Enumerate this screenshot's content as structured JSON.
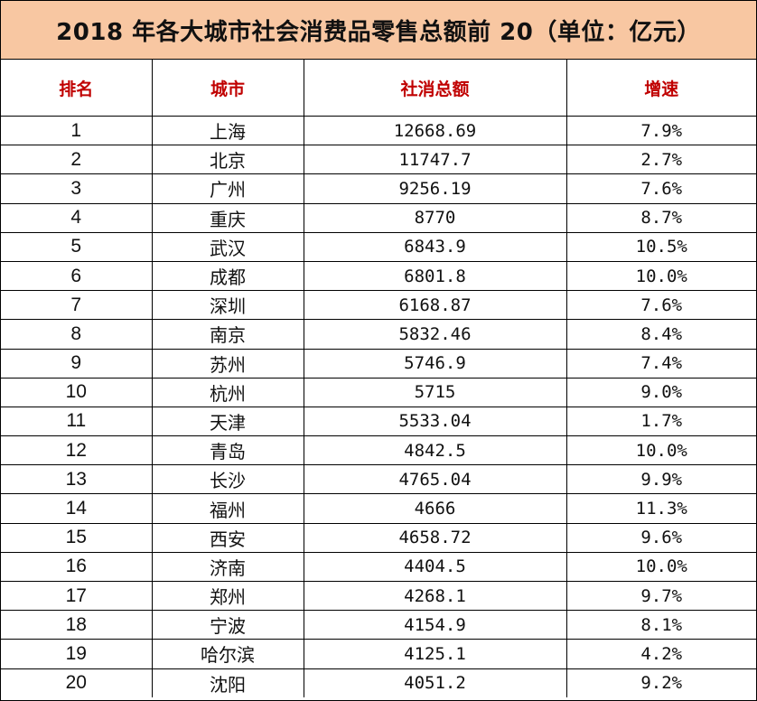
{
  "title": "2018 年各大城市社会消费品零售总额前 20（单位：亿元）",
  "colors": {
    "title_bg": "#f8c7a2",
    "header_text": "#c00000"
  },
  "headers": {
    "rank": "排名",
    "city": "城市",
    "total": "社消总额",
    "growth": "增速"
  },
  "rows": [
    {
      "rank": "1",
      "city": "上海",
      "total": "12668.69",
      "growth": "7.9%"
    },
    {
      "rank": "2",
      "city": "北京",
      "total": "11747.7",
      "growth": "2.7%"
    },
    {
      "rank": "3",
      "city": "广州",
      "total": "9256.19",
      "growth": "7.6%"
    },
    {
      "rank": "4",
      "city": "重庆",
      "total": "8770",
      "growth": "8.7%"
    },
    {
      "rank": "5",
      "city": "武汉",
      "total": "6843.9",
      "growth": "10.5%"
    },
    {
      "rank": "6",
      "city": "成都",
      "total": "6801.8",
      "growth": "10.0%"
    },
    {
      "rank": "7",
      "city": "深圳",
      "total": "6168.87",
      "growth": "7.6%"
    },
    {
      "rank": "8",
      "city": "南京",
      "total": "5832.46",
      "growth": "8.4%"
    },
    {
      "rank": "9",
      "city": "苏州",
      "total": "5746.9",
      "growth": "7.4%"
    },
    {
      "rank": "10",
      "city": "杭州",
      "total": "5715",
      "growth": "9.0%"
    },
    {
      "rank": "11",
      "city": "天津",
      "total": "5533.04",
      "growth": "1.7%"
    },
    {
      "rank": "12",
      "city": "青岛",
      "total": "4842.5",
      "growth": "10.0%"
    },
    {
      "rank": "13",
      "city": "长沙",
      "total": "4765.04",
      "growth": "9.9%"
    },
    {
      "rank": "14",
      "city": "福州",
      "total": "4666",
      "growth": "11.3%"
    },
    {
      "rank": "15",
      "city": "西安",
      "total": "4658.72",
      "growth": "9.6%"
    },
    {
      "rank": "16",
      "city": "济南",
      "total": "4404.5",
      "growth": "10.0%"
    },
    {
      "rank": "17",
      "city": "郑州",
      "total": "4268.1",
      "growth": "9.7%"
    },
    {
      "rank": "18",
      "city": "宁波",
      "total": "4154.9",
      "growth": "8.1%"
    },
    {
      "rank": "19",
      "city": "哈尔滨",
      "total": "4125.1",
      "growth": "4.2%"
    },
    {
      "rank": "20",
      "city": "沈阳",
      "total": "4051.2",
      "growth": "9.2%"
    }
  ]
}
